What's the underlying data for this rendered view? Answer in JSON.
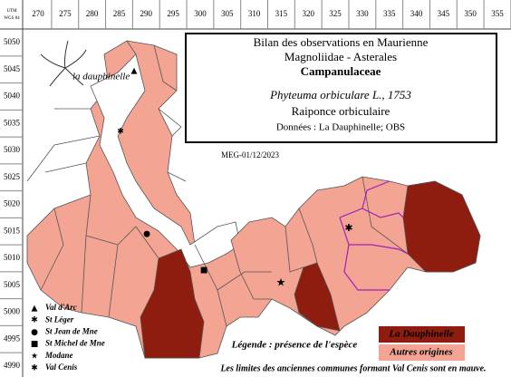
{
  "grid": {
    "corner": [
      "UTM",
      "WGS 84"
    ],
    "columns": [
      "270",
      "275",
      "280",
      "285",
      "290",
      "295",
      "300",
      "305",
      "310",
      "315",
      "320",
      "325",
      "330",
      "335",
      "340",
      "345",
      "350",
      "355"
    ],
    "rows": [
      "5050",
      "5045",
      "5040",
      "5035",
      "5030",
      "5025",
      "5020",
      "5015",
      "5010",
      "5005",
      "5000",
      "4995",
      "4990"
    ]
  },
  "title_box": {
    "title": "Bilan des observations en Maurienne",
    "order": "Magnoliidae - Asterales",
    "family": "Campanulaceae",
    "species": "Phyteuma orbiculare L., 1753",
    "common_name": "Raiponce orbiculaire",
    "sources": "Données : La Dauphinelle; OBS"
  },
  "date": "MEG-01/12/2023",
  "logo": "la dauphinelle",
  "places": [
    "Val d'Arc",
    "St Léger",
    "St Jean de Mne",
    "St Michel de Mne",
    "Modane",
    "Val Cenis"
  ],
  "legend": {
    "title": "Légende : présence de l'espèce",
    "items": [
      {
        "label": "La Dauphinelle",
        "color": "#8e1c0f"
      },
      {
        "label": "Autres origines",
        "color": "#f4a492"
      }
    ]
  },
  "note": "Les limites des anciennes communes formant Val Cenis sont en mauve."
}
